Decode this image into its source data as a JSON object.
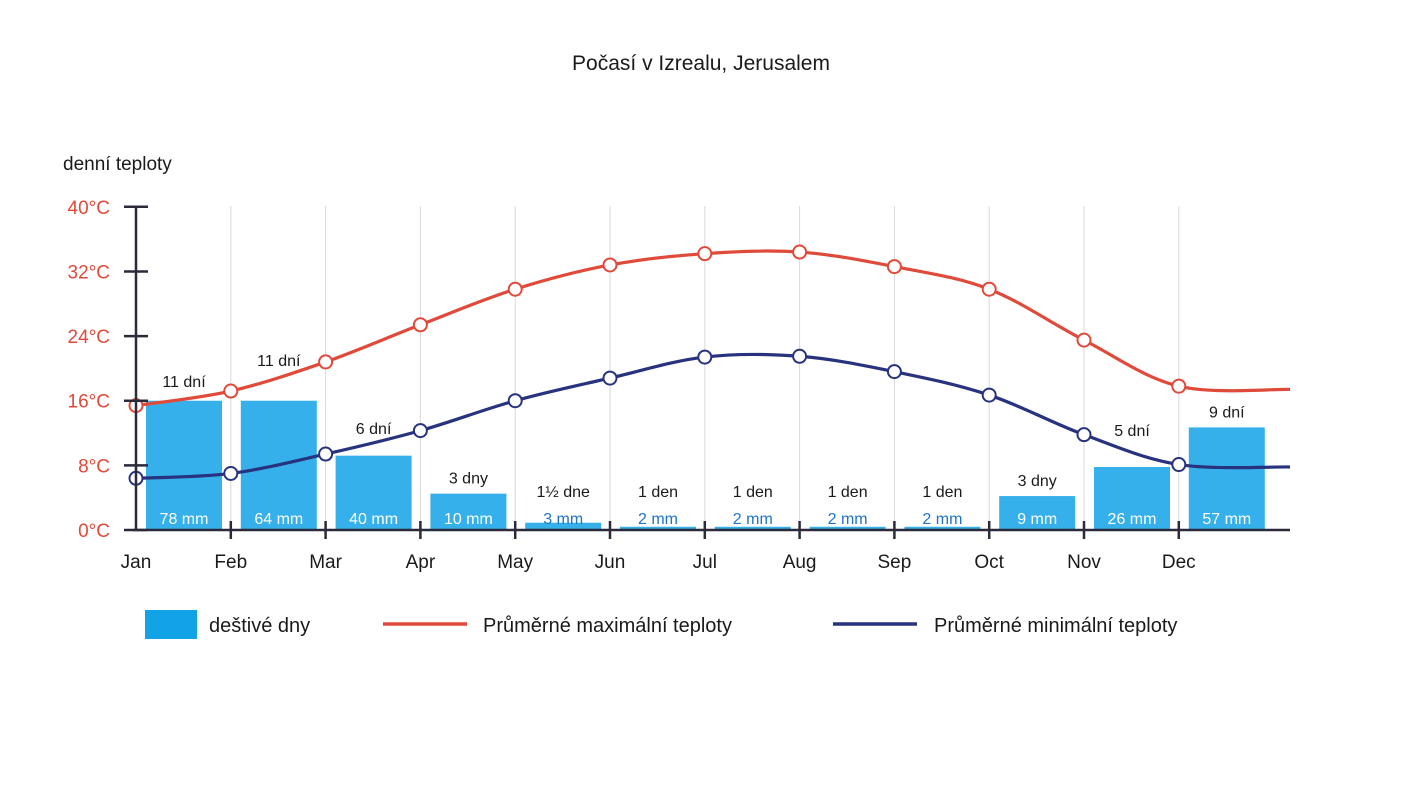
{
  "colors": {
    "bar": "#36b0ea",
    "legend_bar": "#11a3e6",
    "max_line": "#e04a3a",
    "min_line": "#27337e",
    "axis": "#2a2a3a",
    "grid": "#d9d9d9",
    "tick_label": "#e04a3a",
    "mm_outside": "#1f73c8"
  },
  "chart_data": {
    "type": "bar+line",
    "title": "Počasí v Izrealu, Jerusalem",
    "ylabel": "denní teploty",
    "ylim": [
      0,
      40
    ],
    "yticks": [
      "0°C",
      "8°C",
      "16°C",
      "24°C",
      "32°C",
      "40°C"
    ],
    "ytick_values": [
      0,
      8,
      16,
      24,
      32,
      40
    ],
    "categories": [
      "Jan",
      "Feb",
      "Mar",
      "Apr",
      "May",
      "Jun",
      "Jul",
      "Aug",
      "Sep",
      "Oct",
      "Nov",
      "Dec"
    ],
    "rain_mm": [
      78,
      64,
      40,
      10,
      3,
      2,
      2,
      2,
      2,
      9,
      26,
      57
    ],
    "rain_mm_labels": [
      "78 mm",
      "64 mm",
      "40 mm",
      "10 mm",
      "3 mm",
      "2 mm",
      "2 mm",
      "2 mm",
      "2 mm",
      "9 mm",
      "26 mm",
      "57 mm"
    ],
    "rain_bar_heights_degC": [
      16,
      16,
      9.2,
      4.5,
      0.9,
      0.4,
      0.4,
      0.4,
      0.4,
      4.2,
      7.8,
      12.7
    ],
    "rainy_days_labels": [
      "11 dní",
      "11 dní",
      "6 dní",
      "3 dny",
      "1½ dne",
      "1 den",
      "1 den",
      "1 den",
      "1 den",
      "3 dny",
      "5 dní",
      "9 dní"
    ],
    "series": [
      {
        "name": "Průměrné maximální teploty",
        "values": [
          15.4,
          17.2,
          20.8,
          25.4,
          29.8,
          32.8,
          34.2,
          34.4,
          32.6,
          29.8,
          23.5,
          17.8
        ],
        "end_value": 17.4
      },
      {
        "name": "Průměrné minimální teploty",
        "values": [
          6.4,
          7.0,
          9.4,
          12.3,
          16.0,
          18.8,
          21.4,
          21.5,
          19.6,
          16.7,
          11.8,
          8.1
        ],
        "end_value": 7.8
      }
    ],
    "legend": [
      {
        "label": "deštivé dny",
        "kind": "bar"
      },
      {
        "label": "Průměrné maximální teploty",
        "kind": "max_line"
      },
      {
        "label": "Průměrné minimální teploty",
        "kind": "min_line"
      }
    ],
    "legend_position": "bottom",
    "grid": "vertical"
  }
}
